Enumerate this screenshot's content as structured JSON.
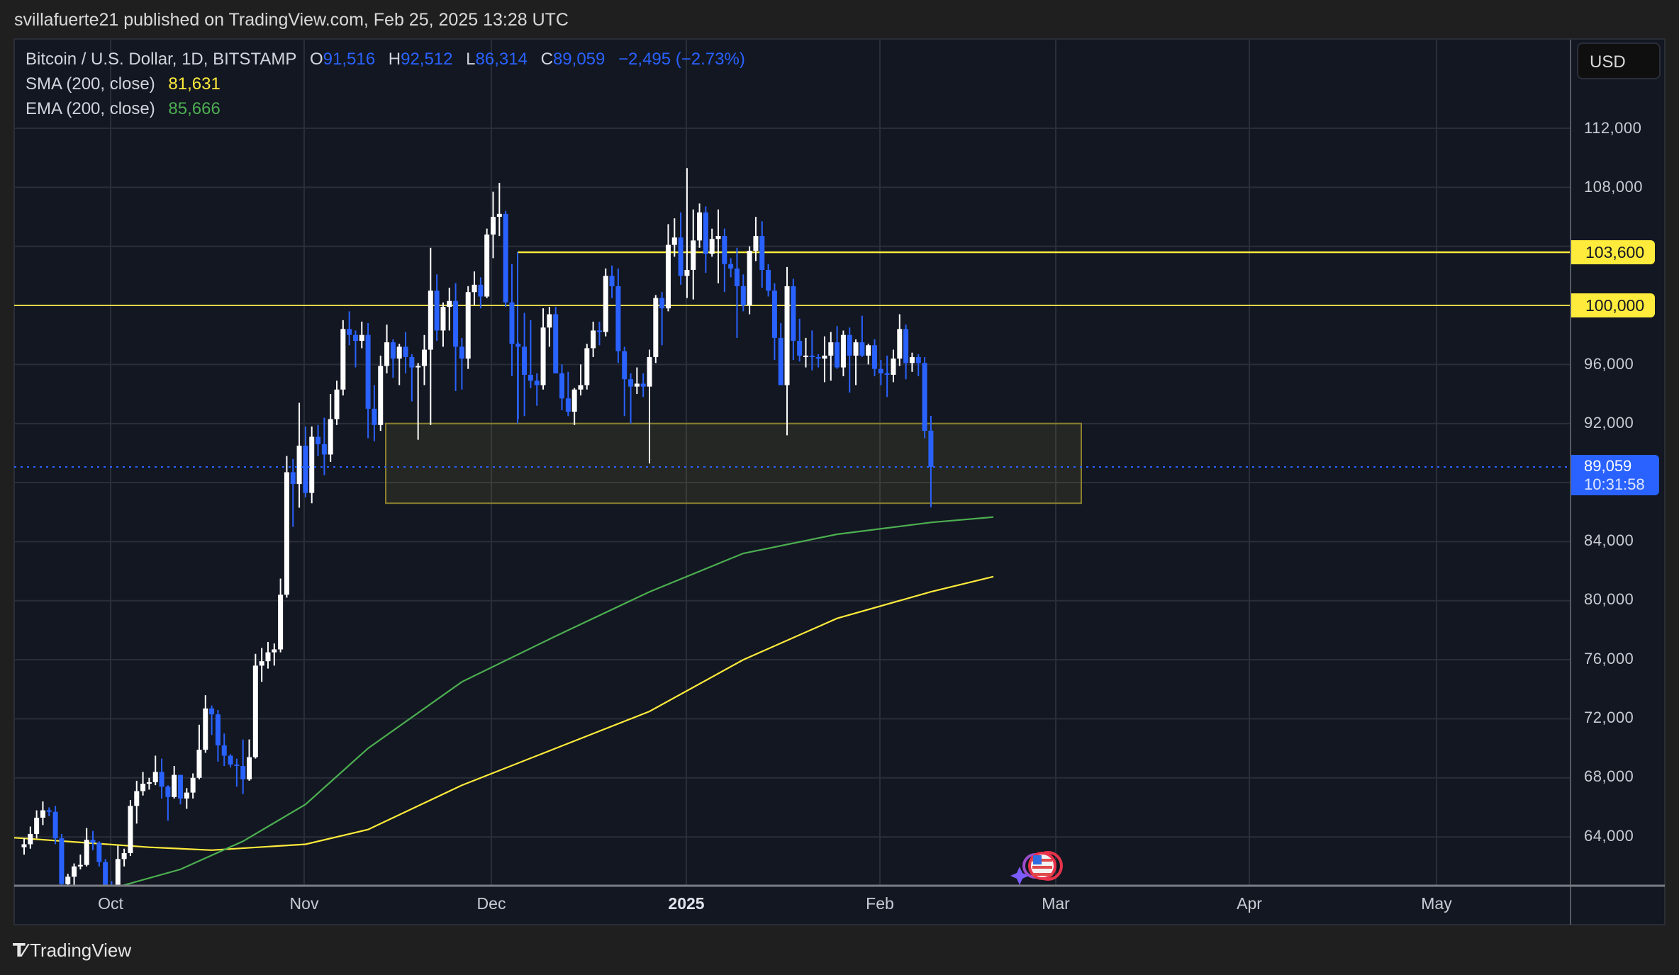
{
  "header": {
    "published": "svillafuerte21 published on TradingView.com, Feb 25, 2025 13:28 UTC"
  },
  "legend": {
    "symbol": "Bitcoin / U.S. Dollar, 1D, BITSTAMP",
    "o_label": "O",
    "o": "91,516",
    "h_label": "H",
    "h": "92,512",
    "l_label": "L",
    "l": "86,314",
    "c_label": "C",
    "c": "89,059",
    "change": "−2,495 (−2.73%)",
    "sma_label": "SMA (200, close)",
    "sma": "81,631",
    "ema_label": "EMA (200, close)",
    "ema": "85,666"
  },
  "currency_button": "USD",
  "price_axis": {
    "ticks": [
      "112,000",
      "108,000",
      "96,000",
      "92,000",
      "84,000",
      "80,000",
      "76,000",
      "72,000",
      "68,000",
      "64,000"
    ],
    "levels": [
      {
        "label": "103,600"
      },
      {
        "label": "100,000"
      }
    ],
    "current_price": "89,059",
    "countdown": "10:31:58"
  },
  "time_axis": {
    "labels": [
      "Oct",
      "Nov",
      "Dec",
      "2025",
      "Feb",
      "Mar",
      "Apr",
      "May"
    ]
  },
  "footer": {
    "brand": "TradingView"
  },
  "colors": {
    "up": "#ffffff",
    "down": "#2962ff",
    "sma": "#ffeb3b",
    "ema": "#4caf50",
    "level": "#ffeb3b",
    "grid": "#2a2e39",
    "bg": "#131722"
  },
  "chart_data": {
    "type": "candlestick",
    "title": "Bitcoin / U.S. Dollar, 1D, BITSTAMP",
    "xlabel": "",
    "ylabel": "USD",
    "ylim": [
      61000,
      116500
    ],
    "y_ticks": [
      64000,
      68000,
      72000,
      76000,
      80000,
      84000,
      88000,
      92000,
      96000,
      100000,
      104000,
      108000,
      112000
    ],
    "x_tick_labels": [
      "Oct",
      "Nov",
      "Dec",
      "2025",
      "Feb",
      "Mar",
      "Apr",
      "May"
    ],
    "start_date": "2024-09-23",
    "end_date": "2025-02-25",
    "horizontal_levels": [
      103600,
      100000
    ],
    "zone": {
      "from_date": "2024-11-14",
      "to_date": "2025-03-04",
      "top": 92000,
      "bottom": 86600
    },
    "last": {
      "open": 91516,
      "high": 92512,
      "low": 86314,
      "close": 89059,
      "change": -2495,
      "change_pct": -2.73
    },
    "sma200": {
      "last": 81631,
      "points": [
        [
          0,
          63900
        ],
        [
          20,
          63300
        ],
        [
          30,
          63100
        ],
        [
          45,
          63500
        ],
        [
          55,
          64500
        ],
        [
          70,
          67500
        ],
        [
          85,
          70000
        ],
        [
          100,
          72500
        ],
        [
          115,
          76000
        ],
        [
          130,
          78800
        ],
        [
          145,
          80600
        ],
        [
          155,
          81631
        ]
      ]
    },
    "ema200": {
      "last": 85666,
      "points": [
        [
          14,
          60500
        ],
        [
          25,
          61800
        ],
        [
          35,
          63700
        ],
        [
          45,
          66200
        ],
        [
          55,
          70000
        ],
        [
          70,
          74500
        ],
        [
          85,
          77600
        ],
        [
          100,
          80600
        ],
        [
          115,
          83200
        ],
        [
          130,
          84500
        ],
        [
          145,
          85300
        ],
        [
          155,
          85666
        ]
      ]
    },
    "ohlc": [
      [
        63300,
        63900,
        62800,
        63500
      ],
      [
        63500,
        64700,
        63200,
        64200
      ],
      [
        64200,
        65800,
        63900,
        65300
      ],
      [
        65300,
        66400,
        64800,
        65800
      ],
      [
        65800,
        66000,
        65400,
        65700
      ],
      [
        65700,
        66100,
        63500,
        63900
      ],
      [
        63900,
        64200,
        60300,
        60800
      ],
      [
        60800,
        61500,
        60000,
        61300
      ],
      [
        61300,
        62200,
        60400,
        62000
      ],
      [
        62000,
        62800,
        61800,
        62100
      ],
      [
        62100,
        64600,
        62000,
        63800
      ],
      [
        63800,
        64400,
        63100,
        63600
      ],
      [
        63600,
        63700,
        62000,
        62300
      ],
      [
        62300,
        62500,
        60300,
        60600
      ],
      [
        60600,
        61000,
        58900,
        60400
      ],
      [
        60400,
        63400,
        60100,
        62500
      ],
      [
        62500,
        63200,
        62000,
        62900
      ],
      [
        62900,
        66500,
        62700,
        66100
      ],
      [
        66100,
        67800,
        64900,
        67100
      ],
      [
        67100,
        68400,
        66800,
        67600
      ],
      [
        67600,
        68000,
        67200,
        67700
      ],
      [
        67700,
        69500,
        67500,
        68400
      ],
      [
        68400,
        69300,
        66600,
        67400
      ],
      [
        67400,
        67500,
        65100,
        66700
      ],
      [
        66700,
        68800,
        66600,
        68200
      ],
      [
        68200,
        68200,
        66200,
        66600
      ],
      [
        66600,
        67300,
        65900,
        67000
      ],
      [
        67000,
        68300,
        66600,
        68000
      ],
      [
        68000,
        71600,
        67900,
        69900
      ],
      [
        69900,
        73600,
        69700,
        72700
      ],
      [
        72700,
        72900,
        70900,
        72300
      ],
      [
        72300,
        72600,
        69100,
        70200
      ],
      [
        70200,
        71000,
        68800,
        69500
      ],
      [
        69500,
        69600,
        68700,
        68900
      ],
      [
        68900,
        69300,
        67400,
        68800
      ],
      [
        68800,
        70600,
        66900,
        67900
      ],
      [
        67900,
        70600,
        67800,
        69400
      ],
      [
        69400,
        76400,
        69300,
        75600
      ],
      [
        75600,
        76800,
        74500,
        75900
      ],
      [
        75900,
        77200,
        75400,
        76500
      ],
      [
        76500,
        77100,
        75600,
        76700
      ],
      [
        76700,
        81500,
        76500,
        80400
      ],
      [
        80400,
        89800,
        80200,
        88700
      ],
      [
        88700,
        89600,
        85000,
        87900
      ],
      [
        87900,
        93400,
        86300,
        90500
      ],
      [
        90500,
        91800,
        87000,
        87300
      ],
      [
        87300,
        91800,
        86600,
        91100
      ],
      [
        91100,
        91900,
        89800,
        90600
      ],
      [
        90600,
        92400,
        88500,
        89900
      ],
      [
        89900,
        94000,
        89400,
        92300
      ],
      [
        92300,
        94900,
        91900,
        94300
      ],
      [
        94300,
        99000,
        93900,
        98400
      ],
      [
        98400,
        99600,
        97300,
        98000
      ],
      [
        98000,
        98300,
        95800,
        97600
      ],
      [
        97600,
        98900,
        97100,
        98000
      ],
      [
        98000,
        98800,
        91000,
        93000
      ],
      [
        93000,
        94600,
        90800,
        91900
      ],
      [
        91900,
        96600,
        91500,
        95900
      ],
      [
        95900,
        98700,
        95400,
        97500
      ],
      [
        97500,
        97700,
        95100,
        96400
      ],
      [
        96400,
        97400,
        94600,
        97200
      ],
      [
        97200,
        98200,
        95400,
        96500
      ],
      [
        96500,
        96700,
        93500,
        95800
      ],
      [
        95800,
        96100,
        90900,
        95900
      ],
      [
        95900,
        98000,
        94600,
        97000
      ],
      [
        97000,
        103900,
        91900,
        101000
      ],
      [
        101000,
        102100,
        97600,
        98300
      ],
      [
        98300,
        100200,
        97200,
        99900
      ],
      [
        99900,
        101200,
        98300,
        100300
      ],
      [
        100300,
        101500,
        94200,
        97200
      ],
      [
        97200,
        97800,
        94300,
        96400
      ],
      [
        96400,
        101300,
        95700,
        100900
      ],
      [
        100900,
        102300,
        100000,
        101400
      ],
      [
        101400,
        101900,
        99800,
        100600
      ],
      [
        100600,
        105200,
        100500,
        104800
      ],
      [
        104800,
        107700,
        103200,
        106000
      ],
      [
        106000,
        108300,
        104700,
        106200
      ],
      [
        106200,
        106400,
        99900,
        100200
      ],
      [
        100200,
        102800,
        95200,
        97400
      ],
      [
        97400,
        97500,
        92300,
        97200
      ],
      [
        97200,
        99500,
        92500,
        95300
      ],
      [
        95300,
        99000,
        94400,
        94900
      ],
      [
        94900,
        95400,
        93200,
        94600
      ],
      [
        94600,
        99800,
        94300,
        98500
      ],
      [
        98500,
        99900,
        97200,
        99400
      ],
      [
        99400,
        99900,
        95400,
        95400
      ],
      [
        95400,
        96000,
        92900,
        93700
      ],
      [
        93700,
        95500,
        92500,
        92800
      ],
      [
        92800,
        94400,
        91900,
        94300
      ],
      [
        94300,
        96000,
        93900,
        94600
      ],
      [
        94600,
        97400,
        94300,
        97100
      ],
      [
        97100,
        98900,
        96500,
        98300
      ],
      [
        98300,
        98900,
        97300,
        98200
      ],
      [
        98200,
        102500,
        97900,
        102000
      ],
      [
        102000,
        102700,
        100500,
        101300
      ],
      [
        101300,
        102500,
        96100,
        96900
      ],
      [
        96900,
        97200,
        92500,
        95000
      ],
      [
        95000,
        95400,
        92000,
        94500
      ],
      [
        94500,
        95800,
        94000,
        94700
      ],
      [
        94700,
        95400,
        93800,
        94500
      ],
      [
        94500,
        97000,
        89300,
        96500
      ],
      [
        96500,
        100700,
        96100,
        100500
      ],
      [
        100500,
        100900,
        97300,
        99800
      ],
      [
        99800,
        105500,
        99600,
        104100
      ],
      [
        104100,
        105900,
        103300,
        104600
      ],
      [
        104600,
        106300,
        101400,
        102000
      ],
      [
        102000,
        109300,
        100500,
        102400
      ],
      [
        102400,
        106500,
        100400,
        104400
      ],
      [
        104400,
        106900,
        103900,
        106300
      ],
      [
        106300,
        106700,
        102200,
        103500
      ],
      [
        103500,
        105200,
        103300,
        104500
      ],
      [
        104500,
        106500,
        101500,
        104700
      ],
      [
        104700,
        105200,
        100900,
        102800
      ],
      [
        102800,
        103200,
        101900,
        102500
      ],
      [
        102500,
        103900,
        97800,
        101300
      ],
      [
        101300,
        102100,
        99600,
        100000
      ],
      [
        100000,
        104000,
        99400,
        103700
      ],
      [
        103700,
        106000,
        103000,
        104700
      ],
      [
        104700,
        105700,
        101200,
        102400
      ],
      [
        102400,
        102800,
        100600,
        101000
      ],
      [
        101000,
        101500,
        96300,
        97800
      ],
      [
        97800,
        98800,
        96100,
        94600
      ],
      [
        94600,
        102600,
        91200,
        101300
      ],
      [
        101300,
        101800,
        96300,
        97600
      ],
      [
        97600,
        99100,
        96200,
        96600
      ],
      [
        96600,
        97800,
        95800,
        96600
      ],
      [
        96600,
        98300,
        95600,
        96500
      ],
      [
        96500,
        96700,
        95800,
        96400
      ],
      [
        96400,
        97900,
        94800,
        96600
      ],
      [
        96600,
        98200,
        94900,
        97500
      ],
      [
        97500,
        98600,
        95700,
        95800
      ],
      [
        95800,
        98300,
        95200,
        98000
      ],
      [
        98000,
        98500,
        94100,
        96600
      ],
      [
        96600,
        97700,
        94600,
        97500
      ],
      [
        97500,
        99300,
        96500,
        96600
      ],
      [
        96600,
        97400,
        96000,
        97300
      ],
      [
        97300,
        97700,
        95200,
        95700
      ],
      [
        95700,
        96300,
        94600,
        95400
      ],
      [
        95400,
        96600,
        93800,
        95300
      ],
      [
        95300,
        97000,
        94800,
        96400
      ],
      [
        96400,
        99400,
        95900,
        98400
      ],
      [
        98400,
        98700,
        95000,
        96100
      ],
      [
        96100,
        96800,
        95500,
        96500
      ],
      [
        96500,
        96700,
        95200,
        96100
      ],
      [
        96100,
        96500,
        91000,
        91500
      ],
      [
        91516,
        92512,
        86314,
        89059
      ]
    ]
  }
}
